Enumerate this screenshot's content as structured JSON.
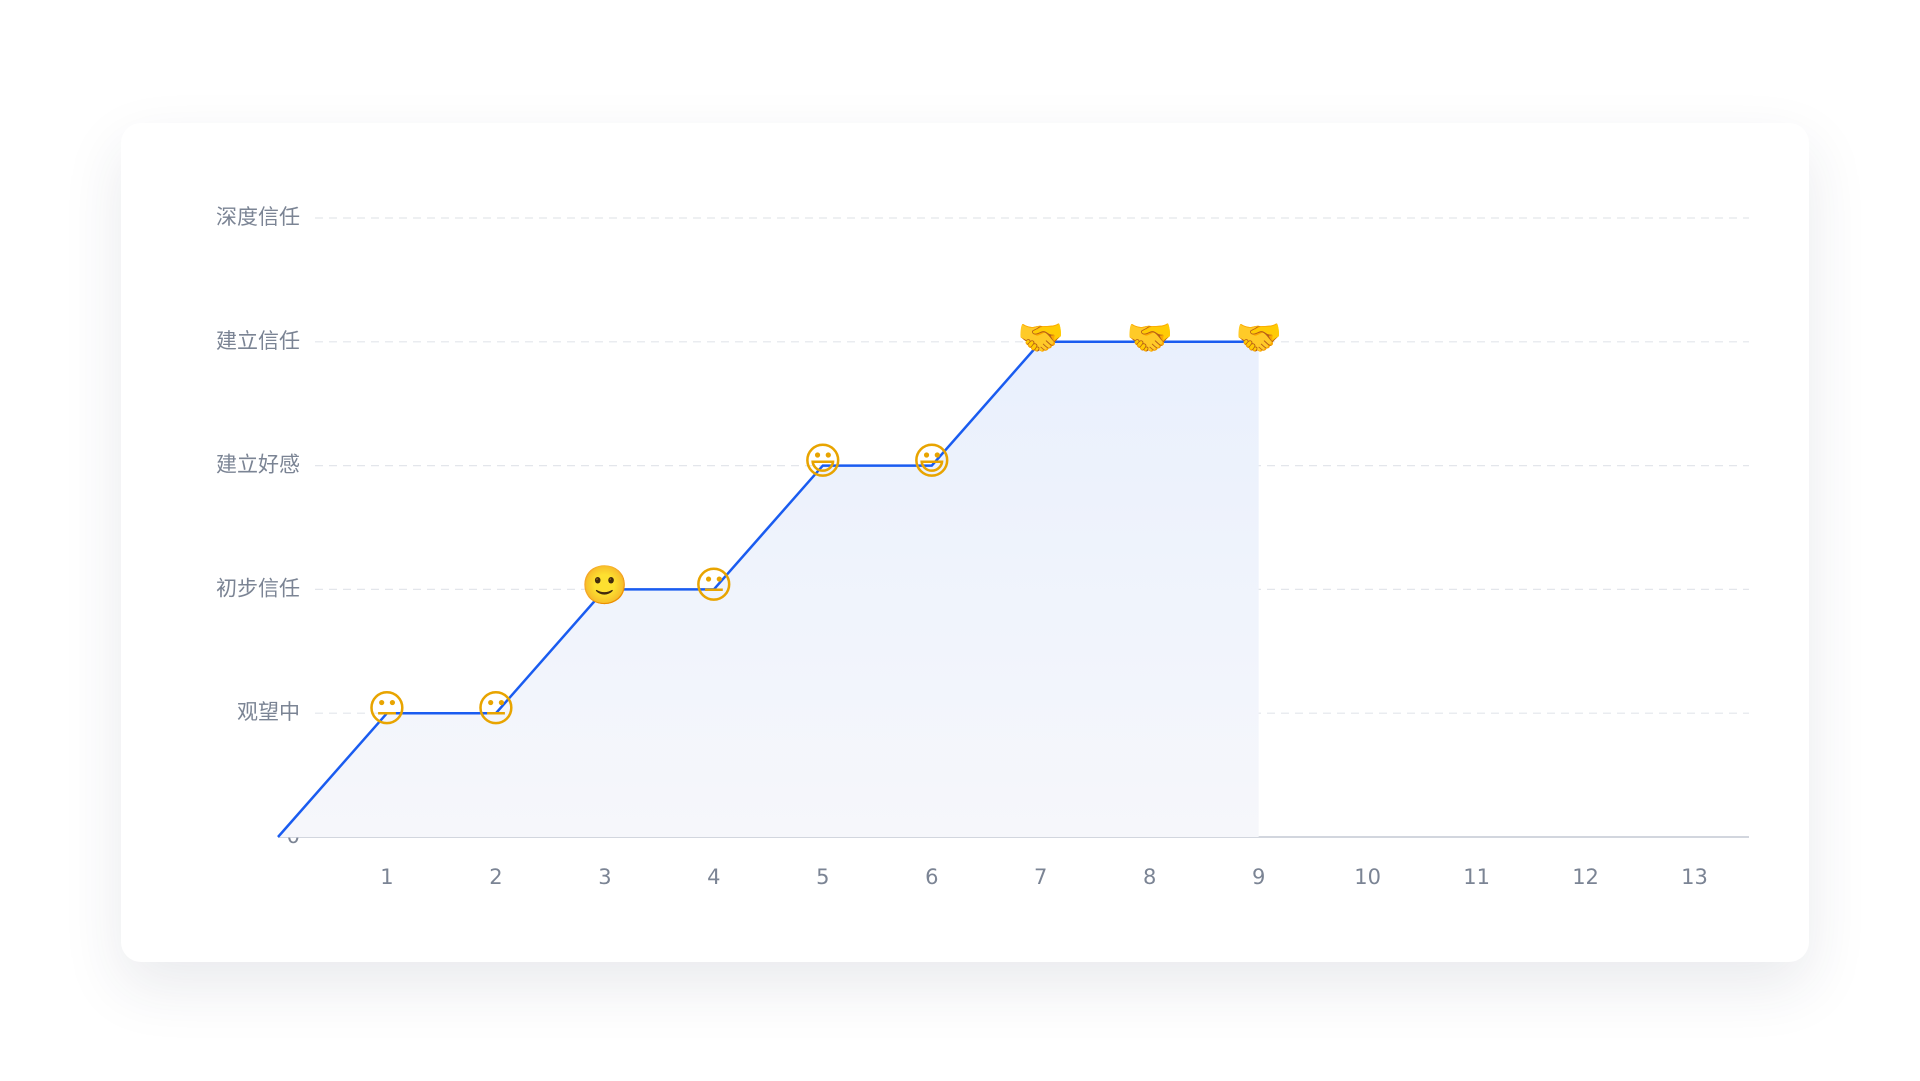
{
  "chart_data": {
    "type": "line",
    "x": [
      0,
      1,
      2,
      3,
      4,
      5,
      6,
      7,
      8,
      9
    ],
    "values": [
      0,
      1,
      1,
      2,
      2,
      3,
      3,
      4,
      4,
      4
    ],
    "markers": [
      null,
      "😐",
      "😐",
      "🙂",
      "😐",
      "😃",
      "😃",
      "🤝",
      "🤝",
      "🤝"
    ],
    "color": "#1a5cf0",
    "xlim": [
      0,
      13.5
    ],
    "xticks": [
      1,
      2,
      3,
      4,
      5,
      6,
      7,
      8,
      9,
      10,
      11,
      12,
      13
    ],
    "ylim": [
      0,
      5
    ],
    "yticks": [
      0,
      {
        "value": 1,
        "label": "观望中"
      },
      {
        "value": 2,
        "label": "初步信任"
      },
      {
        "value": 3,
        "label": "建立好感"
      },
      {
        "value": 4,
        "label": "建立信任"
      },
      {
        "value": 5,
        "label": "深度信任"
      }
    ],
    "grid": true
  }
}
